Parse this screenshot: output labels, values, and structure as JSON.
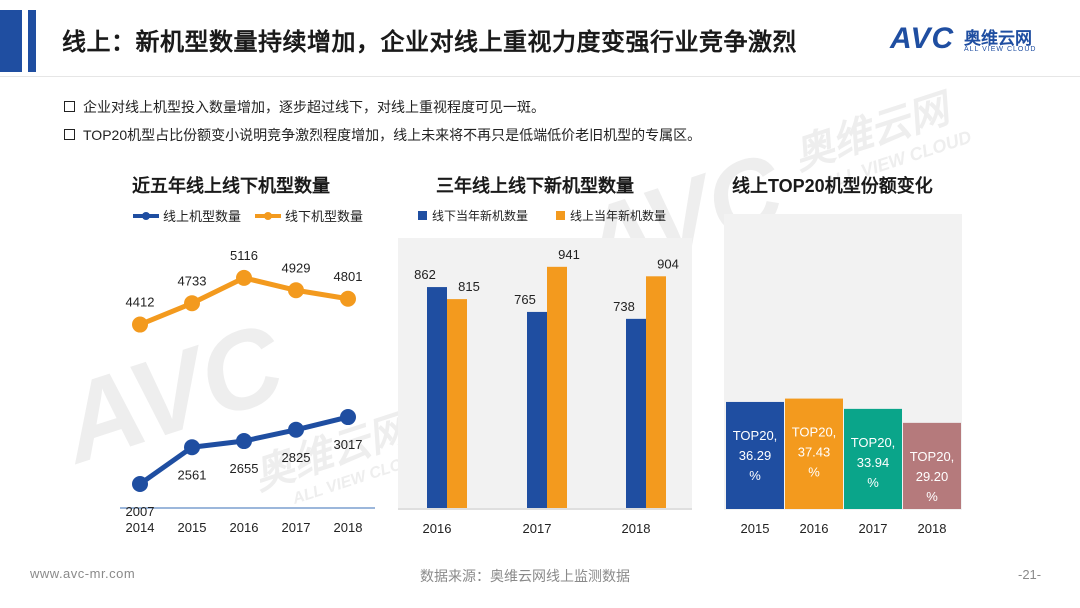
{
  "header": {
    "title": "线上：新机型数量持续增加，企业对线上重视力度变强行业竞争激烈",
    "logo": {
      "mark": "AVC",
      "cn": "奥维云网",
      "en": "ALL VIEW CLOUD"
    },
    "accent_color": "#1f4ea1"
  },
  "bullets": [
    "企业对线上机型投入数量增加，逐步超过线下，对线上重视程度可见一斑。",
    "TOP20机型占比份额变小说明竞争激烈程度增加，线上未来将不再只是低端低价老旧机型的专属区。"
  ],
  "chart_data": [
    {
      "type": "line",
      "title": "近五年线上线下机型数量",
      "categories": [
        "2014",
        "2015",
        "2016",
        "2017",
        "2018"
      ],
      "series": [
        {
          "name": "线上机型数量",
          "color": "#1f4ea1",
          "values": [
            2007,
            2561,
            2655,
            2825,
            3017
          ]
        },
        {
          "name": "线下机型数量",
          "color": "#f39a1e",
          "values": [
            4412,
            4733,
            5116,
            4929,
            4801
          ]
        }
      ],
      "ylim": [
        1500,
        6000
      ],
      "legend": "top"
    },
    {
      "type": "bar",
      "title": "三年线上线下新机型数量",
      "categories": [
        "2016",
        "2017",
        "2018"
      ],
      "series": [
        {
          "name": "线下当年新机数量",
          "color": "#1f4ea1",
          "values": [
            862,
            765,
            738
          ]
        },
        {
          "name": "线上当年新机数量",
          "color": "#f39a1e",
          "values": [
            815,
            941,
            904
          ]
        }
      ],
      "ylim": [
        0,
        1000
      ],
      "legend": "top"
    },
    {
      "type": "bar",
      "title": "线上TOP20机型份额变化",
      "categories": [
        "2015",
        "2016",
        "2017",
        "2018"
      ],
      "values": [
        36.29,
        37.43,
        33.94,
        29.2
      ],
      "labels": [
        [
          "TOP20,",
          "36.29",
          "%"
        ],
        [
          "TOP20,",
          "37.43",
          "%"
        ],
        [
          "TOP20,",
          "33.94",
          "%"
        ],
        [
          "TOP20,",
          "29.20",
          "%"
        ]
      ],
      "colors": [
        "#1f4ea1",
        "#f39a1e",
        "#0aa58a",
        "#b57a7c"
      ],
      "ylim": [
        0,
        100
      ]
    }
  ],
  "footer": {
    "website": "www.avc-mr.com",
    "source": "数据来源：奥维云网线上监测数据",
    "page": "-21-"
  },
  "watermark": {
    "mark": "AVC",
    "cn": "奥维云网",
    "en": "ALL VIEW CLOUD"
  }
}
